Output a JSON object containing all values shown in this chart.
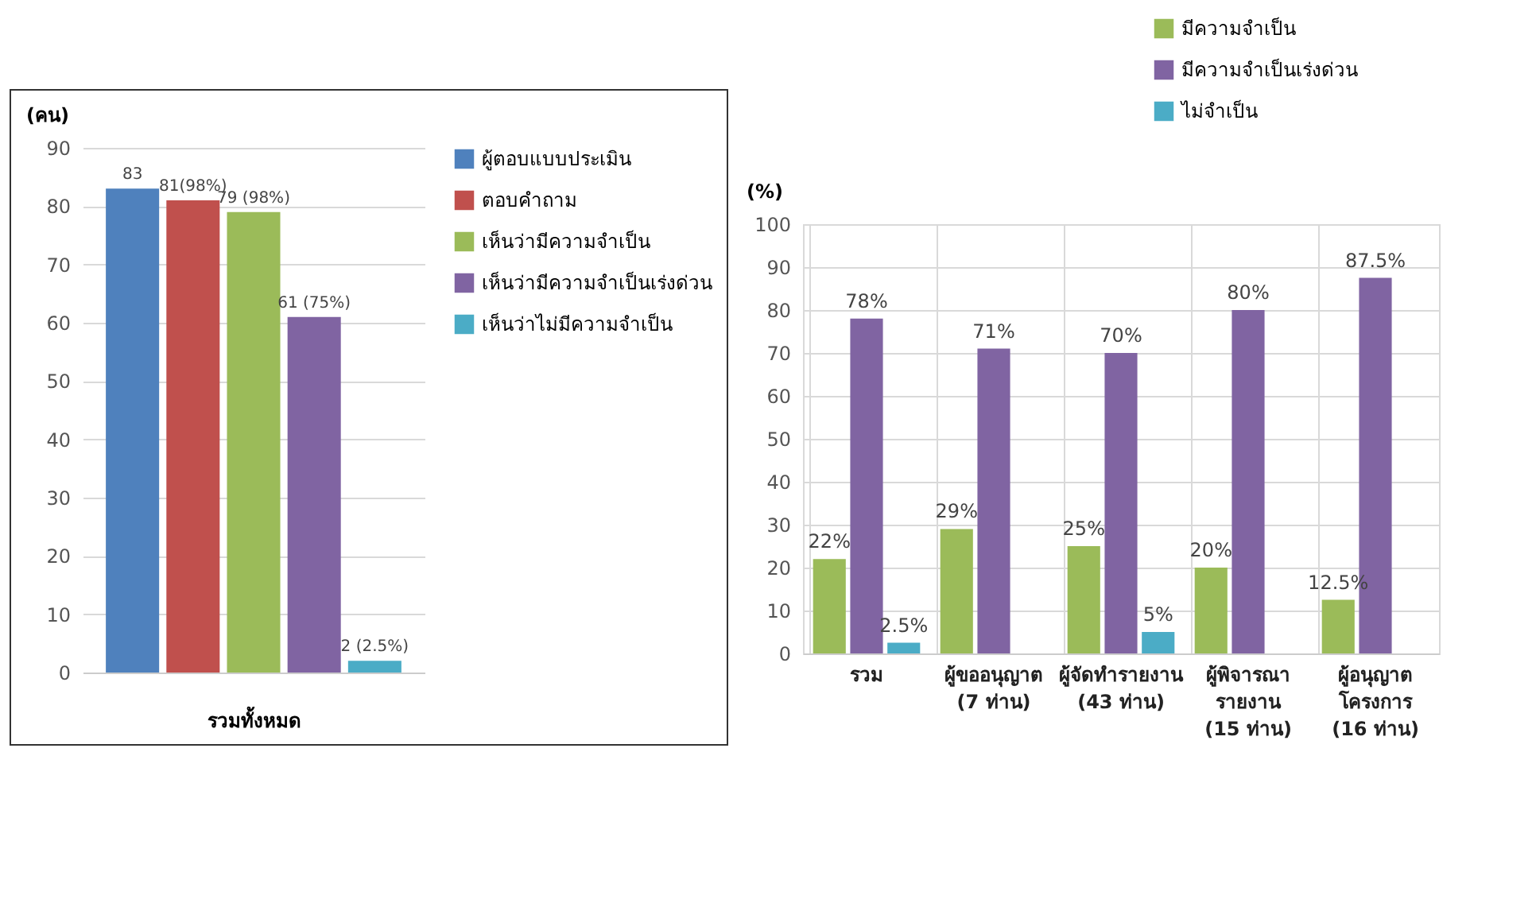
{
  "chart_data": [
    {
      "type": "bar",
      "ylabel": "(คน)",
      "xlabel": "รวมทั้งหมด",
      "categories": [
        null
      ],
      "ylim": [
        0,
        90
      ],
      "yticks": [
        0,
        10,
        20,
        30,
        40,
        50,
        60,
        70,
        80,
        90
      ],
      "grid": "y",
      "legend": "right",
      "series": [
        {
          "name": "ผู้ตอบแบบประเมิน",
          "color": "#4f81bd",
          "values": [
            83
          ],
          "value_labels": [
            "83"
          ]
        },
        {
          "name": "ตอบคำถาม",
          "color": "#c0504d",
          "values": [
            81
          ],
          "value_labels": [
            "81(98%)"
          ]
        },
        {
          "name": "เห็นว่ามีความจำเป็น",
          "color": "#9bbb59",
          "values": [
            79
          ],
          "value_labels": [
            "79 (98%)"
          ]
        },
        {
          "name": "เห็นว่ามีความจำเป็นเร่งด่วน",
          "color": "#8064a2",
          "values": [
            61
          ],
          "value_labels": [
            "61 (75%)"
          ]
        },
        {
          "name": "เห็นว่าไม่มีความจำเป็น",
          "color": "#4bacc6",
          "values": [
            2
          ],
          "value_labels": [
            "2 (2.5%)"
          ]
        }
      ]
    },
    {
      "type": "bar",
      "ylabel": "(%)",
      "categories": [
        "รวม",
        "ผู้ขออนุญาต\n(7 ท่าน)",
        "ผู้จัดทำรายงาน\n(43 ท่าน)",
        "ผู้พิจารณา\nรายงาน\n(15 ท่าน)",
        "ผู้อนุญาต\nโครงการ\n(16 ท่าน)"
      ],
      "ylim": [
        0,
        100
      ],
      "yticks": [
        0,
        10,
        20,
        30,
        40,
        50,
        60,
        70,
        80,
        90,
        100
      ],
      "grid": true,
      "legend": "top right",
      "series": [
        {
          "name": "มีความจำเป็น",
          "color": "#9bbb59",
          "values": [
            22,
            29,
            25,
            20,
            12.5
          ],
          "value_labels": [
            "22%",
            "29%",
            "25%",
            "20%",
            "12.5%"
          ]
        },
        {
          "name": "มีความจำเป็นเร่งด่วน",
          "color": "#8064a2",
          "values": [
            78,
            71,
            70,
            80,
            87.5
          ],
          "value_labels": [
            "78%",
            "71%",
            "70%",
            "80%",
            "87.5%"
          ]
        },
        {
          "name": "ไม่จำเป็น",
          "color": "#4bacc6",
          "values": [
            2.5,
            null,
            5,
            null,
            null
          ],
          "value_labels": [
            "2.5%",
            null,
            "5%",
            null,
            null
          ]
        }
      ]
    }
  ]
}
